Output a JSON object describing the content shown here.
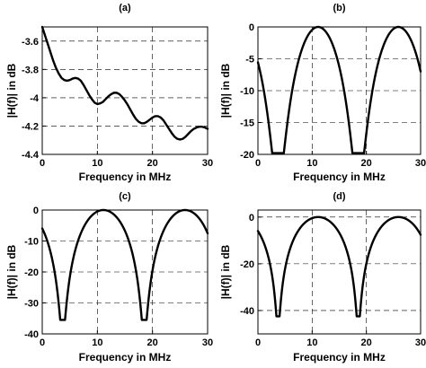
{
  "chart_data": [
    {
      "id": "a",
      "type": "line",
      "title": "(a)",
      "xlabel": "Frequency in MHz",
      "ylabel": "|H(f)| in dB",
      "xlim": [
        0,
        30
      ],
      "ylim": [
        -4.4,
        -3.5
      ],
      "xticks": [
        0,
        10,
        20,
        30
      ],
      "yticks": [
        -3.6,
        -3.8,
        -4,
        -4.2,
        -4.4
      ],
      "ytick_labels": [
        "-3.6",
        "-3.8",
        "-4",
        "-4.2",
        "-4.4"
      ],
      "grid": true,
      "series": [
        {
          "x": [
            0,
            0.5,
            1,
            1.5,
            2,
            2.5,
            3,
            3.5,
            4,
            4.5,
            5,
            5.5,
            6,
            6.5,
            7,
            7.5,
            8,
            8.5,
            9,
            9.5,
            10,
            10.5,
            11,
            11.5,
            12,
            12.5,
            13,
            13.5,
            14,
            14.5,
            15,
            15.5,
            16,
            16.5,
            17,
            17.5,
            18,
            18.5,
            19,
            19.5,
            20,
            20.5,
            21,
            21.5,
            22,
            22.5,
            23,
            23.5,
            24,
            24.5,
            25,
            25.5,
            26,
            26.5,
            27,
            27.5,
            28,
            28.5,
            29,
            29.5,
            30
          ],
          "y": [
            -3.5,
            -3.56,
            -3.62,
            -3.68,
            -3.74,
            -3.79,
            -3.83,
            -3.86,
            -3.875,
            -3.88,
            -3.875,
            -3.865,
            -3.86,
            -3.865,
            -3.88,
            -3.91,
            -3.945,
            -3.98,
            -4.01,
            -4.035,
            -4.045,
            -4.04,
            -4.03,
            -4.01,
            -3.99,
            -3.975,
            -3.965,
            -3.965,
            -3.975,
            -3.995,
            -4.02,
            -4.05,
            -4.085,
            -4.12,
            -4.15,
            -4.17,
            -4.18,
            -4.18,
            -4.17,
            -4.155,
            -4.14,
            -4.13,
            -4.13,
            -4.14,
            -4.16,
            -4.19,
            -4.22,
            -4.25,
            -4.275,
            -4.29,
            -4.295,
            -4.29,
            -4.275,
            -4.255,
            -4.235,
            -4.22,
            -4.21,
            -4.205,
            -4.205,
            -4.21,
            -4.22
          ]
        }
      ]
    },
    {
      "id": "b",
      "type": "line",
      "title": "(b)",
      "xlabel": "Frequency in MHz",
      "ylabel": "|H(f)| in dB",
      "xlim": [
        0,
        30
      ],
      "ylim": [
        -20,
        0
      ],
      "xticks": [
        0,
        10,
        20,
        30
      ],
      "yticks": [
        0,
        -5,
        -10,
        -15,
        -20
      ],
      "ytick_labels": [
        "0",
        "-5",
        "-10",
        "-15",
        "-20"
      ],
      "grid": true,
      "notch_model": {
        "centers": [
          3.7,
          11.1,
          18.5,
          25.9
        ],
        "min_db": -19.8,
        "edge_db": -0.1,
        "center_db": 0,
        "floor": 0.102
      }
    },
    {
      "id": "c",
      "type": "line",
      "title": "(c)",
      "xlabel": "Frequency in MHz",
      "ylabel": "|H(f)| in dB",
      "xlim": [
        0,
        30
      ],
      "ylim": [
        -40,
        0
      ],
      "xticks": [
        0,
        10,
        20,
        30
      ],
      "yticks": [
        0,
        -10,
        -20,
        -30,
        -40
      ],
      "ytick_labels": [
        "0",
        "-10",
        "-20",
        "-30",
        "-40"
      ],
      "grid": true,
      "notch_model": {
        "centers": [
          3.7,
          11.1,
          18.5,
          25.9
        ],
        "min_db": -35.5,
        "edge_db": -0.3,
        "center_db": 0,
        "floor": 0.0168
      }
    },
    {
      "id": "d",
      "type": "line",
      "title": "(d)",
      "xlabel": "Frequency in MHz",
      "ylabel": "|H(f)| in dB",
      "xlim": [
        0,
        30
      ],
      "ylim": [
        -50,
        3
      ],
      "xticks": [
        0,
        10,
        20,
        30
      ],
      "yticks": [
        0,
        -20,
        -40
      ],
      "ytick_labels": [
        "0",
        "-20",
        "-40"
      ],
      "grid": true,
      "notch_model": {
        "centers": [
          3.7,
          11.1,
          18.5,
          25.9
        ],
        "min_db": -42.5,
        "edge_db": -0.4,
        "center_db": 0,
        "floor": 0.0075
      }
    }
  ]
}
